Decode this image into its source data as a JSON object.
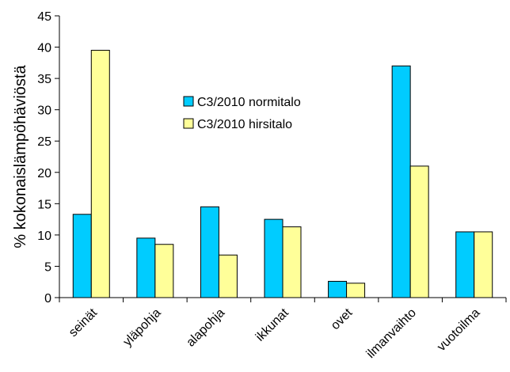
{
  "chart_data": {
    "type": "bar",
    "title": "",
    "xlabel": "",
    "ylabel": "% kokonaislämpöhäviöstä",
    "ylim": [
      0,
      45
    ],
    "yticks": [
      0,
      5,
      10,
      15,
      20,
      25,
      30,
      35,
      40,
      45
    ],
    "categories": [
      "seinät",
      "yläpohja",
      "alapohja",
      "ikkunat",
      "ovet",
      "ilmanvaihto",
      "vuotoilma"
    ],
    "series": [
      {
        "name": "C3/2010 normitalo",
        "color": "#00CCFF",
        "values": [
          13.3,
          9.5,
          14.5,
          12.5,
          2.6,
          37.0,
          10.5
        ]
      },
      {
        "name": "C3/2010 hirsitalo",
        "color": "#FFFF99",
        "values": [
          39.5,
          8.5,
          6.8,
          11.3,
          2.3,
          21.0,
          10.5
        ]
      }
    ],
    "legend_position": "center",
    "grid": false
  }
}
